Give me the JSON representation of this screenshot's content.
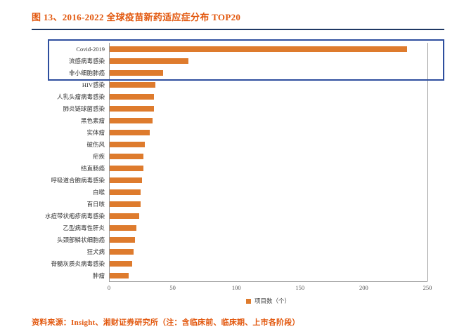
{
  "title": "图 13、2016-2022 全球疫苗新药适应症分布 TOP20",
  "source_note": "资料来源：Insight、湘财证券研究所（注：含临床前、临床期、上市各阶段）",
  "legend_label": "项目数（个）",
  "colors": {
    "accent": "#E2570D",
    "bar": "#DE7B2D",
    "highlight_box": "#2E4E9E",
    "title_rule": "#1F3864",
    "axis": "#999999",
    "label_text": "#333333"
  },
  "chart_data": {
    "type": "bar",
    "orientation": "horizontal",
    "title": "图 13、2016-2022 全球疫苗新药适应症分布 TOP20",
    "legend": [
      "项目数（个）"
    ],
    "legend_position": "bottom",
    "grid": false,
    "xlim": [
      0,
      250
    ],
    "x_ticks": [
      0,
      50,
      100,
      150,
      200,
      250
    ],
    "highlight_top_n": 3,
    "categories": [
      "Covid-2019",
      "流感病毒感染",
      "非小细胞肺癌",
      "HIV感染",
      "人乳头瘤病毒感染",
      "肺炎链球菌感染",
      "黑色素瘤",
      "实体瘤",
      "破伤风",
      "疟疾",
      "结直肠癌",
      "呼吸道合胞病毒感染",
      "白喉",
      "百日咳",
      "水痘带状疱疹病毒感染",
      "乙型病毒性肝炎",
      "头颈部鳞状细胞癌",
      "狂犬病",
      "脊髓灰质炎病毒感染",
      "肿瘤"
    ],
    "values": [
      222,
      59,
      40,
      34,
      33,
      33,
      32,
      30,
      26,
      25,
      25,
      24,
      23,
      23,
      22,
      20,
      19,
      18,
      17,
      14
    ]
  }
}
